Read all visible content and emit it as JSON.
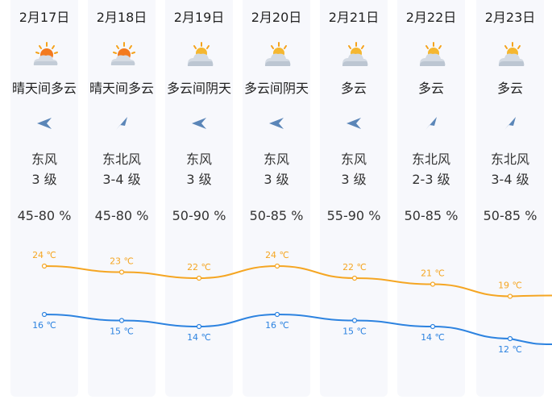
{
  "days": [
    {
      "date": "2月17日",
      "condition": "晴天间多云",
      "icon": "sun-cloud-icon",
      "wind": "东风",
      "level": "3 级",
      "humidity": "45-80 %",
      "high": "24 ℃",
      "low": "16 ℃"
    },
    {
      "date": "2月18日",
      "condition": "晴天间多云",
      "icon": "sun-cloud-icon",
      "wind": "东北风",
      "level": "3-4 级",
      "humidity": "45-80 %",
      "high": "23 ℃",
      "low": "15 ℃"
    },
    {
      "date": "2月19日",
      "condition": "多云间阴天",
      "icon": "cloudy-icon",
      "wind": "东风",
      "level": "3 级",
      "humidity": "50-90 %",
      "high": "22 ℃",
      "low": "14 ℃"
    },
    {
      "date": "2月20日",
      "condition": "多云间阴天",
      "icon": "cloudy-icon",
      "wind": "东风",
      "level": "3 级",
      "humidity": "50-85 %",
      "high": "24 ℃",
      "low": "16 ℃"
    },
    {
      "date": "2月21日",
      "condition": "多云",
      "icon": "cloudy-icon",
      "wind": "东风",
      "level": "3 级",
      "humidity": "55-90 %",
      "high": "22 ℃",
      "low": "15 ℃"
    },
    {
      "date": "2月22日",
      "condition": "多云",
      "icon": "cloudy-icon",
      "wind": "东北风",
      "level": "2-3 级",
      "humidity": "50-85 %",
      "high": "21 ℃",
      "low": "14 ℃"
    },
    {
      "date": "2月23日",
      "condition": "多云",
      "icon": "cloudy-icon",
      "wind": "东北风",
      "level": "3-4 级",
      "humidity": "50-85 %",
      "high": "19 ℃",
      "low": "12 ℃"
    }
  ],
  "chart_data": {
    "type": "line",
    "categories": [
      "2月17日",
      "2月18日",
      "2月19日",
      "2月20日",
      "2月21日",
      "2月22日",
      "2月23日"
    ],
    "series": [
      {
        "values": [
          24,
          23,
          22,
          24,
          22,
          21,
          19
        ],
        "color": "#f5a623"
      },
      {
        "values": [
          16,
          15,
          14,
          16,
          15,
          14,
          12
        ],
        "color": "#2d83e0"
      }
    ]
  },
  "colors": {
    "arrow": "#5b86b8",
    "sun": "#f5a21a",
    "cloud": "#c9d3de"
  }
}
